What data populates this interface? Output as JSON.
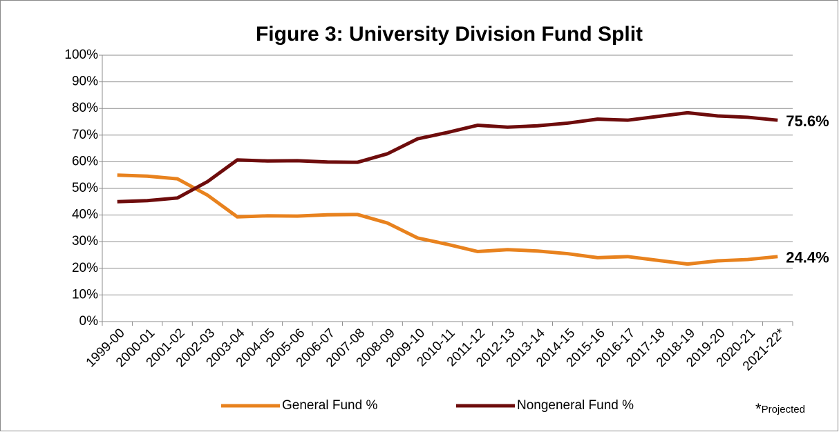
{
  "chart_data": {
    "type": "line",
    "title": "Figure 3: University Division Fund Split",
    "categories": [
      "1999-00",
      "2000-01",
      "2001-02",
      "2002-03",
      "2003-04",
      "2004-05",
      "2005-06",
      "2006-07",
      "2007-08",
      "2008-09",
      "2009-10",
      "2010-11",
      "2011-12",
      "2012-13",
      "2013-14",
      "2014-15",
      "2015-16",
      "2016-17",
      "2017-18",
      "2018-19",
      "2019-20",
      "2020-21",
      "2021-22*"
    ],
    "series": [
      {
        "name": "General Fund %",
        "color": "#e8821e",
        "values": [
          55.0,
          54.6,
          53.6,
          47.5,
          39.3,
          39.7,
          39.6,
          40.1,
          40.2,
          37.0,
          31.4,
          29.0,
          26.3,
          27.0,
          26.5,
          25.5,
          24.0,
          24.4,
          23.0,
          21.6,
          22.8,
          23.3,
          24.4
        ],
        "value_labels": [
          null,
          null,
          null,
          null,
          null,
          null,
          null,
          null,
          null,
          null,
          null,
          null,
          null,
          null,
          null,
          null,
          null,
          null,
          null,
          null,
          null,
          null,
          "24.4%"
        ]
      },
      {
        "name": "Nongeneral Fund %",
        "color": "#6e0c0c",
        "values": [
          45.0,
          45.4,
          46.4,
          52.5,
          60.7,
          60.3,
          60.4,
          59.9,
          59.8,
          63.0,
          68.6,
          71.0,
          73.7,
          73.0,
          73.5,
          74.5,
          76.0,
          75.6,
          77.0,
          78.4,
          77.2,
          76.7,
          75.6
        ],
        "value_labels": [
          null,
          null,
          null,
          null,
          null,
          null,
          null,
          null,
          null,
          null,
          null,
          null,
          null,
          null,
          null,
          null,
          null,
          null,
          null,
          null,
          null,
          null,
          "75.6%"
        ]
      }
    ],
    "ylim": [
      0,
      100
    ],
    "yticks": [
      {
        "value": 0,
        "label": "0%"
      },
      {
        "value": 10,
        "label": "10%"
      },
      {
        "value": 20,
        "label": "20%"
      },
      {
        "value": 30,
        "label": "30%"
      },
      {
        "value": 40,
        "label": "40%"
      },
      {
        "value": 50,
        "label": "50%"
      },
      {
        "value": 60,
        "label": "60%"
      },
      {
        "value": 70,
        "label": "70%"
      },
      {
        "value": 80,
        "label": "80%"
      },
      {
        "value": 90,
        "label": "90%"
      },
      {
        "value": 100,
        "label": "100%"
      }
    ],
    "grid": true,
    "legend": "bottom",
    "footnote": {
      "mark": "*",
      "text": "Projected"
    }
  }
}
